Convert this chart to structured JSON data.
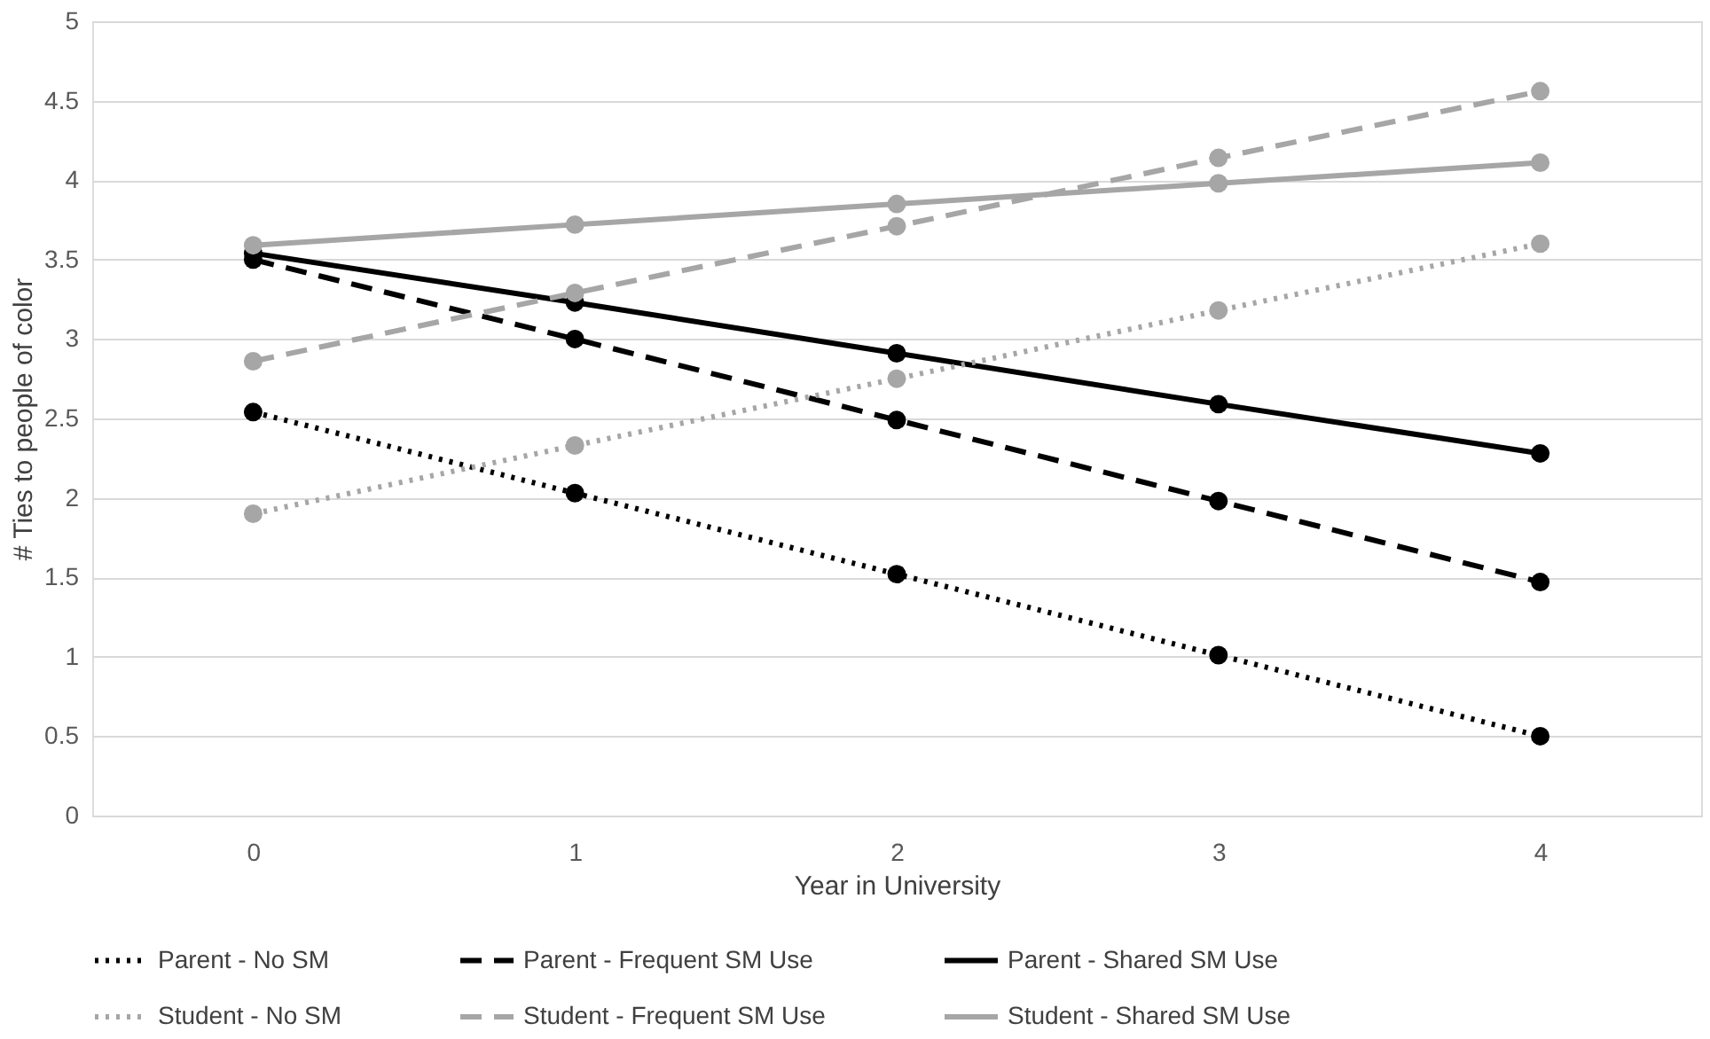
{
  "chart_data": {
    "type": "line",
    "xlabel": "Year in University",
    "ylabel": "# Ties to people of color",
    "categories": [
      "0",
      "1",
      "2",
      "3",
      "4"
    ],
    "ylim": [
      0,
      5
    ],
    "yticks": [
      0,
      0.5,
      1,
      1.5,
      2,
      2.5,
      3,
      3.5,
      4,
      4.5,
      5
    ],
    "grid": "y",
    "legend": "bottom",
    "marker": "circle",
    "series": [
      {
        "name": "Parent - No SM",
        "color": "#000000",
        "line_style": "dotted",
        "values": [
          2.54,
          2.03,
          1.52,
          1.01,
          0.5
        ]
      },
      {
        "name": "Parent - Frequent SM Use",
        "color": "#000000",
        "line_style": "dashed",
        "values": [
          3.5,
          3.0,
          2.49,
          1.98,
          1.47
        ]
      },
      {
        "name": "Parent - Shared SM Use",
        "color": "#000000",
        "line_style": "solid",
        "values": [
          3.54,
          3.23,
          2.91,
          2.59,
          2.28
        ]
      },
      {
        "name": "Student - No SM",
        "color": "#a6a6a6",
        "line_style": "dotted",
        "values": [
          1.9,
          2.33,
          2.75,
          3.18,
          3.6
        ]
      },
      {
        "name": "Student - Frequent SM Use",
        "color": "#a6a6a6",
        "line_style": "dashed",
        "values": [
          2.86,
          3.29,
          3.71,
          4.14,
          4.56
        ]
      },
      {
        "name": "Student - Shared SM Use",
        "color": "#a6a6a6",
        "line_style": "solid",
        "values": [
          3.59,
          3.72,
          3.85,
          3.98,
          4.11
        ]
      }
    ]
  }
}
